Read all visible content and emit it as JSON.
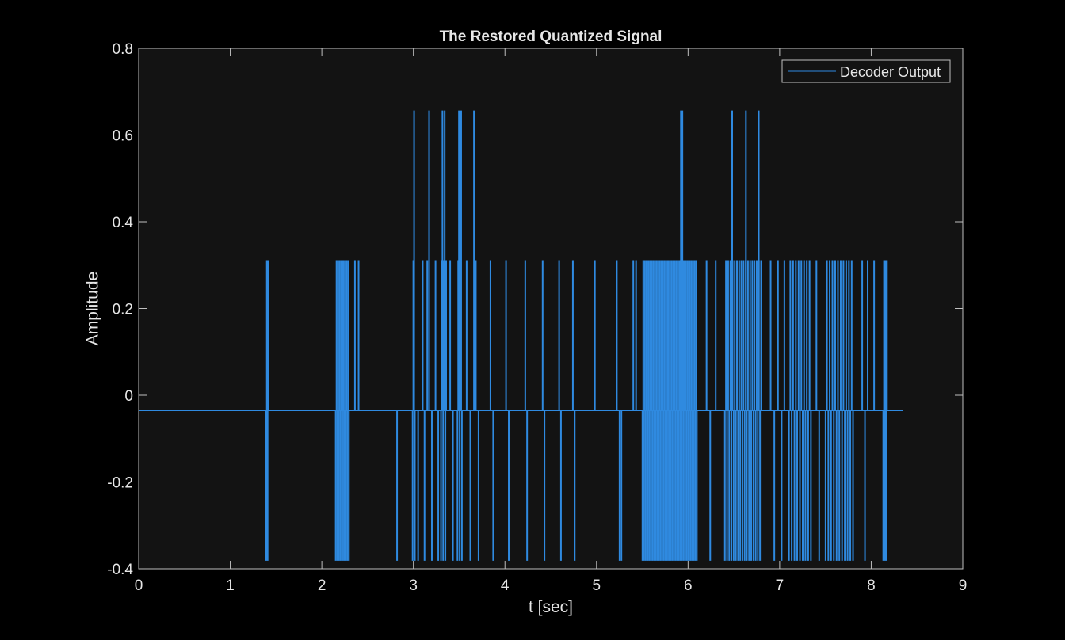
{
  "colors": {
    "figure_background": "#000000",
    "axes_background": "#131313",
    "axis_color": "#bfbfbf",
    "text_color": "#e6e6e6",
    "series_color": "#2f8ae0"
  },
  "chart_data": {
    "type": "line",
    "title": "The Restored Quantized Signal",
    "xlabel": "t [sec]",
    "ylabel": "Amplitude",
    "xlim": [
      0,
      9
    ],
    "ylim": [
      -0.4,
      0.8
    ],
    "xticks": [
      0,
      1,
      2,
      3,
      4,
      5,
      6,
      7,
      8,
      9
    ],
    "yticks": [
      -0.4,
      -0.2,
      0,
      0.2,
      0.4,
      0.6,
      0.8
    ],
    "ytick_labels": [
      "-0.4",
      "-0.2",
      "0",
      "0.2",
      "0.4",
      "0.6",
      "0.8"
    ],
    "grid": false,
    "legend_position": "top-right",
    "series": [
      {
        "name": "Decoder Output",
        "baseline": -0.035,
        "levels": [
          -0.38,
          0.31,
          0.655
        ],
        "x_end": 8.35,
        "dense_ranges": [
          {
            "t": [
              1.39,
              1.42
            ],
            "levels": [
              -0.38,
              0.31
            ],
            "step": 0.008
          },
          {
            "t": [
              2.15,
              2.3
            ],
            "levels": [
              -0.38,
              0.31
            ],
            "step": 0.009
          },
          {
            "t": [
              2.99,
              3.02
            ],
            "levels": [
              -0.38,
              0.31,
              0.655
            ],
            "step": 0.008
          },
          {
            "t": [
              3.3,
              3.36
            ],
            "levels": [
              -0.38,
              0.31,
              0.655
            ],
            "step": 0.008
          },
          {
            "t": [
              3.48,
              3.53
            ],
            "levels": [
              -0.38,
              0.31,
              0.655
            ],
            "step": 0.008
          },
          {
            "t": [
              5.5,
              6.1
            ],
            "levels": [
              -0.38,
              0.31
            ],
            "step": 0.009
          },
          {
            "t": [
              5.92,
              5.95
            ],
            "levels": [
              0.655,
              0.31
            ],
            "step": 0.008
          },
          {
            "t": [
              6.4,
              6.8
            ],
            "levels": [
              -0.38,
              0.31
            ],
            "step": 0.012
          },
          {
            "t": [
              7.1,
              7.35
            ],
            "levels": [
              -0.38,
              0.31
            ],
            "step": 0.015
          },
          {
            "t": [
              7.5,
              7.8
            ],
            "levels": [
              -0.38,
              0.31
            ],
            "step": 0.015
          },
          {
            "t": [
              8.13,
              8.17
            ],
            "levels": [
              -0.38,
              0.31
            ],
            "step": 0.008
          }
        ],
        "events": [
          {
            "t": 2.36,
            "v": 0.31
          },
          {
            "t": 2.4,
            "v": 0.31
          },
          {
            "t": 2.82,
            "v": -0.38
          },
          {
            "t": 3.05,
            "v": -0.38
          },
          {
            "t": 3.1,
            "v": 0.31
          },
          {
            "t": 3.12,
            "v": -0.38
          },
          {
            "t": 3.15,
            "v": 0.31
          },
          {
            "t": 3.17,
            "v": 0.655
          },
          {
            "t": 3.2,
            "v": -0.38
          },
          {
            "t": 3.24,
            "v": 0.31
          },
          {
            "t": 3.27,
            "v": -0.38
          },
          {
            "t": 3.4,
            "v": 0.31
          },
          {
            "t": 3.43,
            "v": -0.38
          },
          {
            "t": 3.58,
            "v": 0.31
          },
          {
            "t": 3.62,
            "v": -0.38
          },
          {
            "t": 3.66,
            "v": 0.655
          },
          {
            "t": 3.68,
            "v": 0.31
          },
          {
            "t": 3.71,
            "v": -0.38
          },
          {
            "t": 3.84,
            "v": 0.31
          },
          {
            "t": 3.87,
            "v": -0.38
          },
          {
            "t": 4.01,
            "v": 0.31
          },
          {
            "t": 4.04,
            "v": -0.38
          },
          {
            "t": 4.22,
            "v": 0.31
          },
          {
            "t": 4.24,
            "v": -0.38
          },
          {
            "t": 4.41,
            "v": 0.31
          },
          {
            "t": 4.43,
            "v": -0.38
          },
          {
            "t": 4.59,
            "v": 0.31
          },
          {
            "t": 4.61,
            "v": -0.38
          },
          {
            "t": 4.74,
            "v": 0.31
          },
          {
            "t": 4.76,
            "v": -0.38
          },
          {
            "t": 4.98,
            "v": 0.31
          },
          {
            "t": 5.22,
            "v": 0.31
          },
          {
            "t": 5.25,
            "v": -0.38
          },
          {
            "t": 5.27,
            "v": -0.38
          },
          {
            "t": 5.4,
            "v": 0.31
          },
          {
            "t": 5.43,
            "v": 0.31
          },
          {
            "t": 6.2,
            "v": 0.31
          },
          {
            "t": 6.24,
            "v": -0.38
          },
          {
            "t": 6.3,
            "v": 0.31
          },
          {
            "t": 6.48,
            "v": 0.655
          },
          {
            "t": 6.63,
            "v": 0.655
          },
          {
            "t": 6.77,
            "v": 0.655
          },
          {
            "t": 6.9,
            "v": 0.31
          },
          {
            "t": 6.94,
            "v": -0.38
          },
          {
            "t": 6.98,
            "v": 0.31
          },
          {
            "t": 7.02,
            "v": -0.38
          },
          {
            "t": 7.05,
            "v": 0.31
          },
          {
            "t": 7.4,
            "v": 0.31
          },
          {
            "t": 7.43,
            "v": -0.38
          },
          {
            "t": 7.9,
            "v": 0.31
          },
          {
            "t": 7.93,
            "v": -0.38
          },
          {
            "t": 7.96,
            "v": 0.31
          },
          {
            "t": 8.03,
            "v": 0.31
          }
        ]
      }
    ]
  }
}
